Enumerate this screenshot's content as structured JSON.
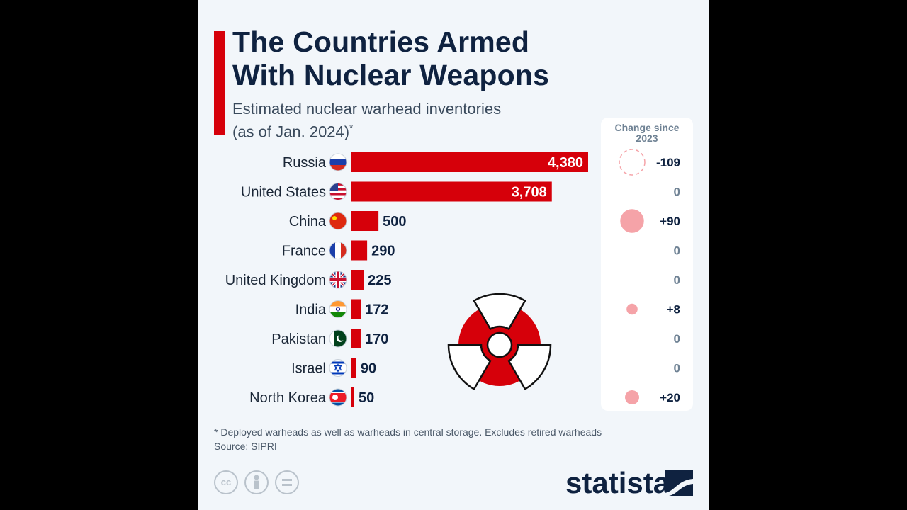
{
  "header": {
    "title_line1": "The Countries Armed",
    "title_line2": "With Nuclear Weapons",
    "subtitle_line1": "Estimated nuclear warhead inventories",
    "subtitle_line2": "(as of Jan. 2024)",
    "subtitle_mark": "*"
  },
  "change_column": {
    "header_line1": "Change since",
    "header_line2": "2023"
  },
  "footer": {
    "note": "* Deployed warheads as well as warheads in central storage. Excludes retired warheads",
    "source": "Source: SIPRI",
    "license_icons": [
      "cc-icon",
      "attribution-icon",
      "no-derivatives-icon"
    ],
    "brand": "statista"
  },
  "chart_data": {
    "type": "bar",
    "orientation": "horizontal",
    "title": "The Countries Armed With Nuclear Weapons",
    "subtitle": "Estimated nuclear warhead inventories (as of Jan. 2024)*",
    "categories": [
      "Russia",
      "United States",
      "China",
      "France",
      "United Kingdom",
      "India",
      "Pakistan",
      "Israel",
      "North Korea"
    ],
    "values": [
      4380,
      3708,
      500,
      290,
      225,
      172,
      170,
      90,
      50
    ],
    "value_labels": [
      "4,380",
      "3,708",
      "500",
      "290",
      "225",
      "172",
      "170",
      "90",
      "50"
    ],
    "change_since_2023": [
      -109,
      0,
      90,
      0,
      0,
      8,
      0,
      0,
      20
    ],
    "change_labels": [
      "-109",
      "0",
      "+90",
      "0",
      "0",
      "+8",
      "0",
      "0",
      "+20"
    ],
    "flags": [
      "russia-flag-icon",
      "united-states-flag-icon",
      "china-flag-icon",
      "france-flag-icon",
      "united-kingdom-flag-icon",
      "india-flag-icon",
      "pakistan-flag-icon",
      "israel-flag-icon",
      "north-korea-flag-icon"
    ],
    "xlim": [
      0,
      4380
    ],
    "grid": false,
    "legend": "none",
    "colors": {
      "bar": "#d6000a",
      "accent": "#d6000a",
      "title": "#0f2240",
      "change_bubble": "#f5a3a8",
      "change_zero_text": "#6f8294",
      "change_text": "#0f2240",
      "background": "#f2f6fa"
    }
  }
}
